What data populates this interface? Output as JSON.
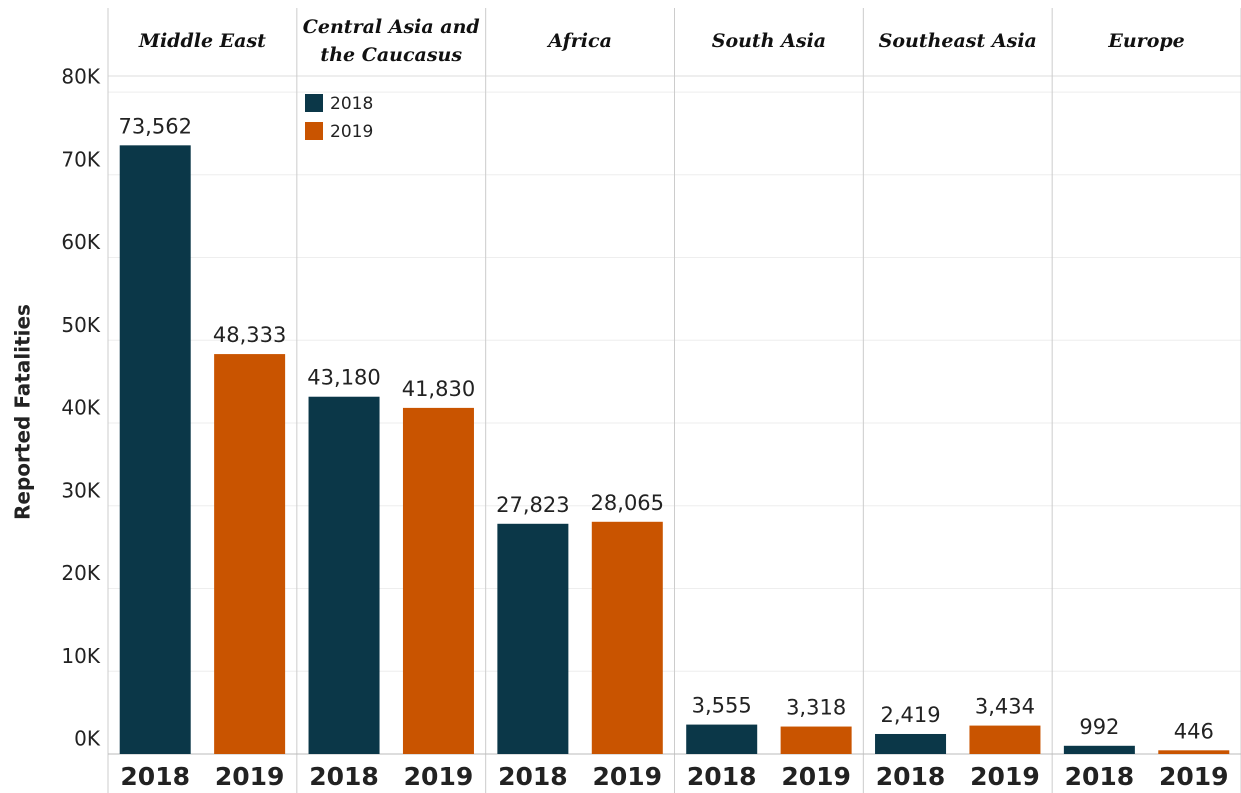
{
  "chart_data": {
    "type": "bar",
    "y_label": "Reported Fatalities",
    "categories": [
      "Middle East",
      "Central Asia and the Caucasus",
      "Africa",
      "South Asia",
      "Southeast Asia",
      "Europe"
    ],
    "series": [
      {
        "name": "2018",
        "color": "#0b3748",
        "values": [
          73562,
          43180,
          27823,
          3555,
          2419,
          992
        ],
        "value_labels": [
          "73,562",
          "43,180",
          "27,823",
          "3,555",
          "2,419",
          "992"
        ]
      },
      {
        "name": "2019",
        "color": "#c95400",
        "values": [
          48333,
          41830,
          28065,
          3318,
          3434,
          446
        ],
        "value_labels": [
          "48,333",
          "41,830",
          "28,065",
          "3,318",
          "3,434",
          "446"
        ]
      }
    ],
    "ylim": [
      0,
      81700
    ],
    "yticks": [
      {
        "value": 0,
        "label": "0K"
      },
      {
        "value": 10000,
        "label": "10K"
      },
      {
        "value": 20000,
        "label": "20K"
      },
      {
        "value": 30000,
        "label": "30K"
      },
      {
        "value": 40000,
        "label": "40K"
      },
      {
        "value": 50000,
        "label": "50K"
      },
      {
        "value": 60000,
        "label": "60K"
      },
      {
        "value": 70000,
        "label": "70K"
      },
      {
        "value": 80000,
        "label": "80K"
      }
    ],
    "grid": true,
    "legend": "top-left"
  }
}
